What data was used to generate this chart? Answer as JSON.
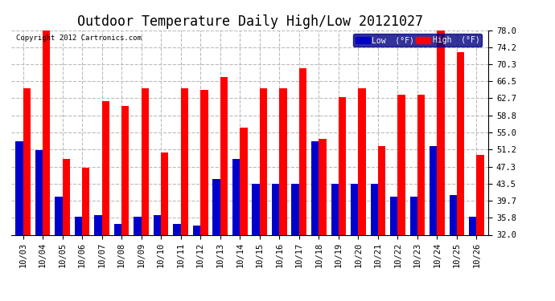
{
  "title": "Outdoor Temperature Daily High/Low 20121027",
  "copyright": "Copyright 2012 Cartronics.com",
  "legend_low": "Low  (°F)",
  "legend_high": "High  (°F)",
  "dates": [
    "10/03",
    "10/04",
    "10/05",
    "10/06",
    "10/07",
    "10/08",
    "10/09",
    "10/10",
    "10/11",
    "10/12",
    "10/13",
    "10/14",
    "10/15",
    "10/16",
    "10/17",
    "10/18",
    "10/19",
    "10/20",
    "10/21",
    "10/22",
    "10/23",
    "10/24",
    "10/25",
    "10/26"
  ],
  "highs": [
    65.0,
    78.0,
    49.0,
    47.0,
    62.0,
    61.0,
    65.0,
    50.5,
    65.0,
    64.5,
    67.5,
    56.0,
    65.0,
    65.0,
    69.5,
    53.5,
    63.0,
    65.0,
    52.0,
    63.5,
    63.5,
    79.0,
    73.0,
    50.0
  ],
  "lows": [
    53.0,
    51.0,
    40.5,
    36.0,
    36.5,
    34.5,
    36.0,
    36.5,
    34.5,
    34.0,
    44.5,
    49.0,
    43.5,
    43.5,
    43.5,
    53.0,
    43.5,
    43.5,
    43.5,
    40.5,
    40.5,
    52.0,
    41.0,
    36.0
  ],
  "high_color": "#ff0000",
  "low_color": "#0000cc",
  "bg_color": "#ffffff",
  "plot_bg_color": "#ffffff",
  "grid_color": "#bbbbbb",
  "ylim_min": 32.0,
  "ylim_max": 78.0,
  "yticks": [
    32.0,
    35.8,
    39.7,
    43.5,
    47.3,
    51.2,
    55.0,
    58.8,
    62.7,
    66.5,
    70.3,
    74.2,
    78.0
  ],
  "bar_width": 0.38,
  "title_fontsize": 12,
  "tick_fontsize": 7.5,
  "figwidth": 6.9,
  "figheight": 3.75,
  "dpi": 100
}
